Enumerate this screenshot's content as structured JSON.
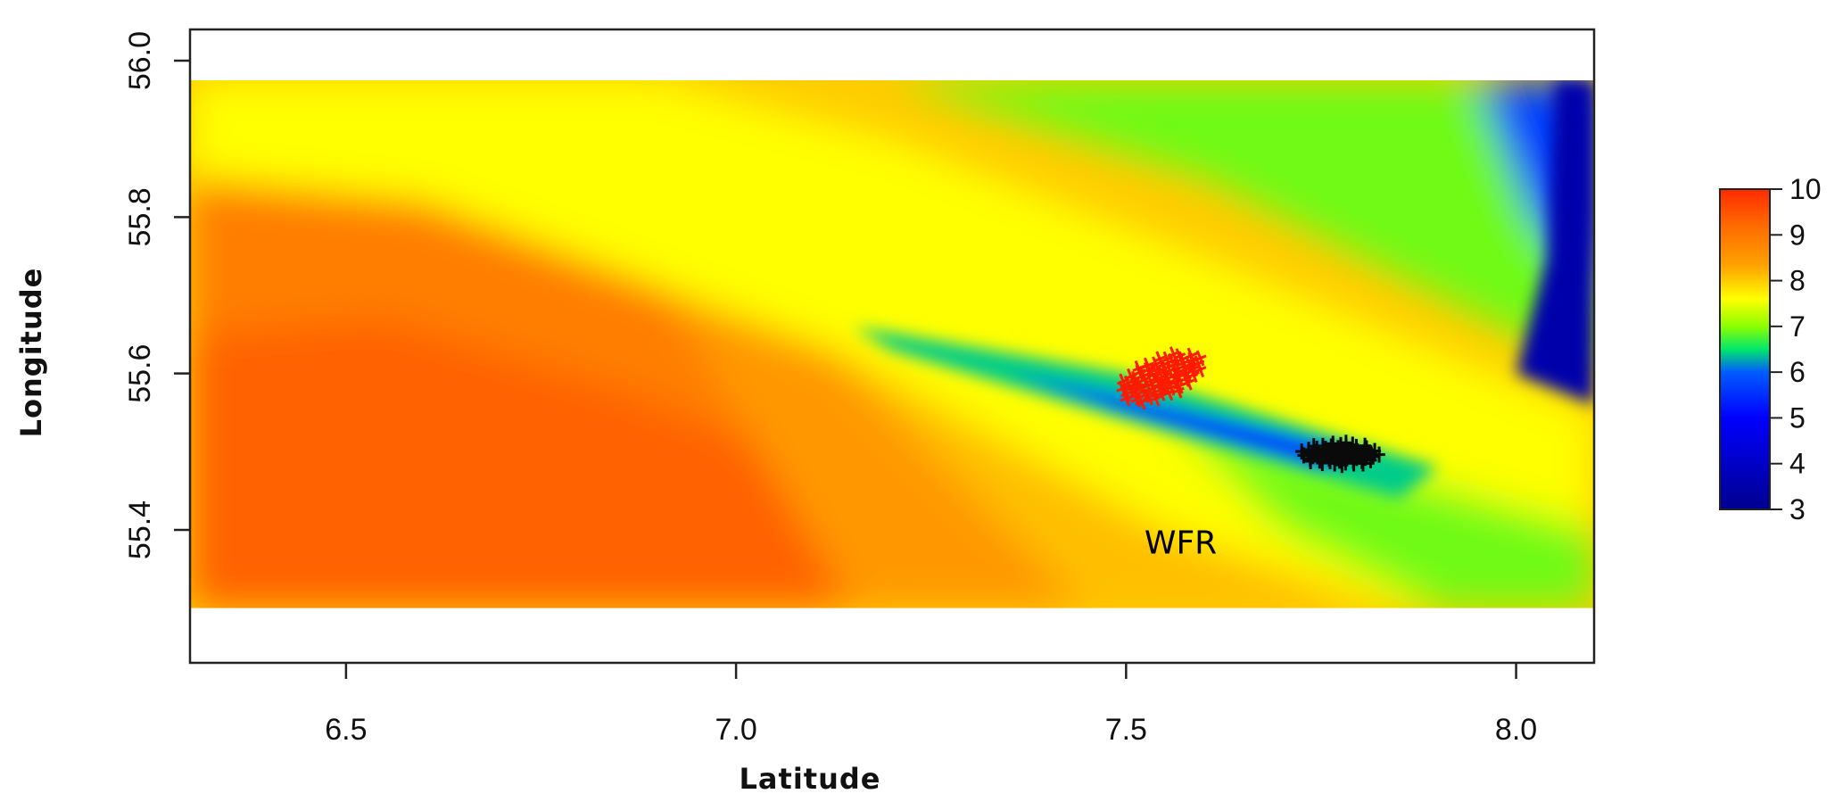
{
  "chart_data": {
    "type": "heatmap",
    "xlabel": "Latitude",
    "ylabel": "Longitude",
    "xlim": [
      6.3,
      8.1
    ],
    "ylim": [
      55.23,
      56.04
    ],
    "data_extent": {
      "x": [
        6.3,
        8.1
      ],
      "y": [
        55.3,
        55.975
      ]
    },
    "x_ticks": [
      {
        "value": 6.5,
        "label": "6.5"
      },
      {
        "value": 7.0,
        "label": "7.0"
      },
      {
        "value": 7.5,
        "label": "7.5"
      },
      {
        "value": 8.0,
        "label": "8.0"
      }
    ],
    "y_ticks": [
      {
        "value": 55.4,
        "label": "55.4"
      },
      {
        "value": 55.6,
        "label": "55.6"
      },
      {
        "value": 55.8,
        "label": "55.8"
      },
      {
        "value": 56.0,
        "label": "56.0"
      }
    ],
    "colorbar": {
      "min": 3,
      "max": 10,
      "ticks": [
        "3",
        "4",
        "5",
        "6",
        "7",
        "8",
        "9",
        "10"
      ],
      "stops": [
        {
          "value": 3.0,
          "color": "#00008f"
        },
        {
          "value": 5.0,
          "color": "#0000ff"
        },
        {
          "value": 6.0,
          "color": "#005cff"
        },
        {
          "value": 6.5,
          "color": "#00e86b"
        },
        {
          "value": 7.0,
          "color": "#8cff00"
        },
        {
          "value": 7.6,
          "color": "#ffff00"
        },
        {
          "value": 8.3,
          "color": "#ffa500"
        },
        {
          "value": 9.2,
          "color": "#ff6a00"
        },
        {
          "value": 10.0,
          "color": "#ff2a00"
        }
      ]
    },
    "field_regions": [
      {
        "name": "orange-plateau",
        "value": 8.9,
        "polygon": [
          [
            6.3,
            55.3
          ],
          [
            7.25,
            55.3
          ],
          [
            7.15,
            55.6
          ],
          [
            6.9,
            55.74
          ],
          [
            6.6,
            55.82
          ],
          [
            6.3,
            55.85
          ]
        ]
      },
      {
        "name": "deep-orange",
        "value": 9.3,
        "polygon": [
          [
            6.3,
            55.3
          ],
          [
            7.22,
            55.3
          ],
          [
            7.05,
            55.5
          ],
          [
            6.85,
            55.58
          ],
          [
            6.55,
            55.67
          ],
          [
            6.3,
            55.65
          ]
        ]
      },
      {
        "name": "orange-band",
        "value": 8.5,
        "polygon": [
          [
            7.15,
            55.3
          ],
          [
            7.55,
            55.3
          ],
          [
            7.2,
            55.6
          ],
          [
            6.9,
            55.72
          ]
        ]
      },
      {
        "name": "yellow-orange",
        "value": 8.1,
        "polygon": [
          [
            7.45,
            55.3
          ],
          [
            7.8,
            55.3
          ],
          [
            7.3,
            55.6
          ],
          [
            7.05,
            55.7
          ]
        ]
      },
      {
        "name": "yellow-band",
        "value": 7.6,
        "polygon": [
          [
            6.3,
            55.85
          ],
          [
            6.6,
            55.82
          ],
          [
            7.15,
            55.62
          ],
          [
            7.55,
            55.4
          ],
          [
            7.85,
            55.3
          ],
          [
            8.1,
            55.3
          ],
          [
            8.1,
            55.55
          ],
          [
            7.6,
            55.75
          ],
          [
            7.2,
            55.9
          ],
          [
            6.9,
            55.975
          ],
          [
            6.3,
            55.975
          ]
        ]
      },
      {
        "name": "green-north",
        "value": 6.9,
        "polygon": [
          [
            7.2,
            55.975
          ],
          [
            7.6,
            55.85
          ],
          [
            8.1,
            55.6
          ],
          [
            8.1,
            55.975
          ]
        ]
      },
      {
        "name": "blue-northeast",
        "value": 5.7,
        "polygon": [
          [
            7.95,
            55.975
          ],
          [
            8.1,
            55.975
          ],
          [
            8.1,
            55.7
          ],
          [
            8.02,
            55.8
          ]
        ]
      },
      {
        "name": "navy-east-edge",
        "value": 3.5,
        "polygon": [
          [
            8.05,
            55.975
          ],
          [
            8.1,
            55.975
          ],
          [
            8.1,
            55.56
          ],
          [
            8.0,
            55.6
          ],
          [
            8.04,
            55.75
          ]
        ]
      },
      {
        "name": "green-southeast",
        "value": 6.9,
        "polygon": [
          [
            7.55,
            55.55
          ],
          [
            8.1,
            55.4
          ],
          [
            8.1,
            55.3
          ],
          [
            7.9,
            55.3
          ],
          [
            7.7,
            55.4
          ]
        ]
      },
      {
        "name": "wake-band",
        "value": 6.4,
        "polygon": [
          [
            7.15,
            55.66
          ],
          [
            7.5,
            55.6
          ],
          [
            7.9,
            55.48
          ],
          [
            7.85,
            55.44
          ],
          [
            7.5,
            55.54
          ],
          [
            7.2,
            55.63
          ]
        ]
      },
      {
        "name": "wake-core",
        "value": 5.6,
        "polygon": [
          [
            7.35,
            55.6
          ],
          [
            7.5,
            55.57
          ],
          [
            7.8,
            55.5
          ],
          [
            7.75,
            55.48
          ],
          [
            7.5,
            55.55
          ]
        ]
      }
    ],
    "annotations": [
      {
        "label": "WFR",
        "x": 7.57,
        "y": 55.37
      }
    ]
  }
}
